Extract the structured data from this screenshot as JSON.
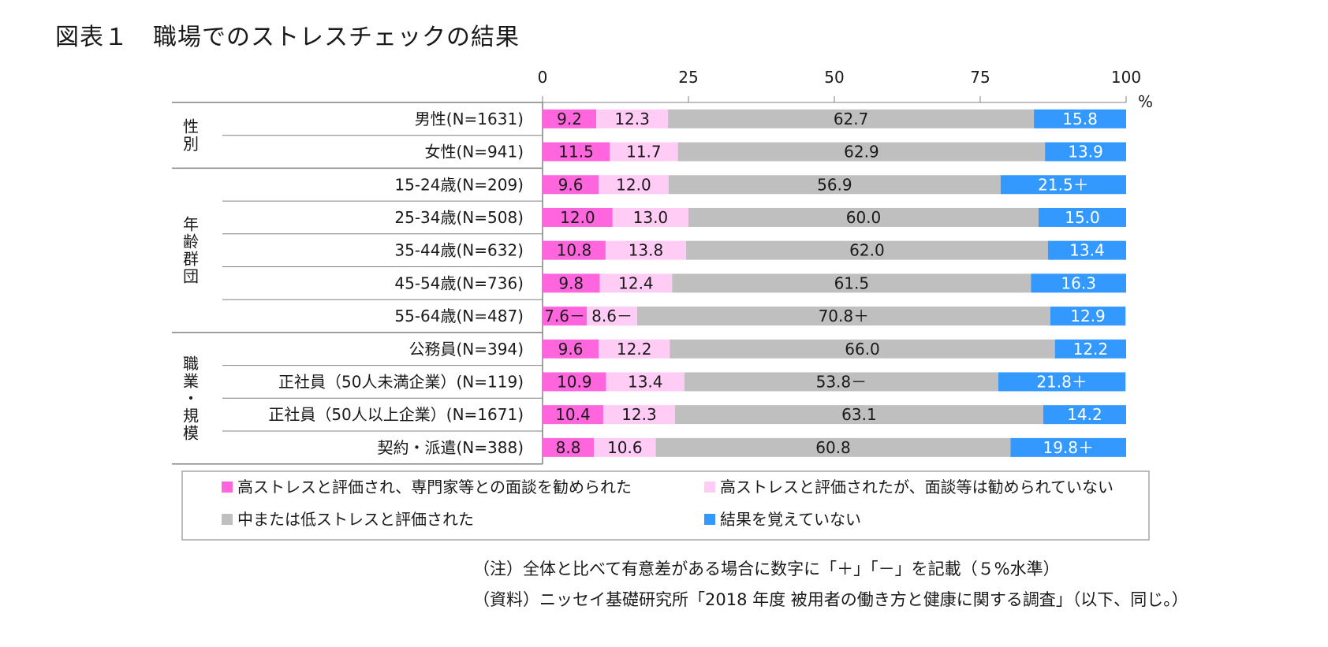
{
  "title": "図表１　職場でのストレスチェックの結果",
  "notes": {
    "note": "（注）全体と比べて有意差がある場合に数字に「＋」「－」を記載（５%水準）",
    "source": "（資料）ニッセイ基礎研究所「2018 年度 被用者の働き方と健康に関する調査」（以下、同じ。）"
  },
  "colors": {
    "series": [
      "#ff66dd",
      "#ffccf5",
      "#bfbfbf",
      "#3399ff"
    ],
    "label_text": [
      "#1a1a1a",
      "#1a1a1a",
      "#1a1a1a",
      "#ffffff"
    ],
    "axis": "#808080"
  },
  "chart_data": {
    "type": "bar",
    "orientation": "horizontal",
    "stacked": true,
    "xlim": [
      0,
      100
    ],
    "x_ticks": [
      0,
      25,
      50,
      75,
      100
    ],
    "x_unit": "%",
    "groups": [
      {
        "name": "性別",
        "rows": [
          0,
          1
        ]
      },
      {
        "name": "年齢群団",
        "rows": [
          2,
          3,
          4,
          5,
          6
        ]
      },
      {
        "name": "職業・規模",
        "rows": [
          7,
          8,
          9,
          10
        ]
      }
    ],
    "categories": [
      "男性(N=1631)",
      "女性(N=941)",
      "15-24歳(N=209)",
      "25-34歳(N=508)",
      "35-44歳(N=632)",
      "45-54歳(N=736)",
      "55-64歳(N=487)",
      "公務員(N=394)",
      "正社員（50人未満企業）(N=119)",
      "正社員（50人以上企業）(N=1671)",
      "契約・派遣(N=388)"
    ],
    "series": [
      {
        "name": "高ストレスと評価され、専門家等との面談を勧められた",
        "values": [
          9.2,
          11.5,
          9.6,
          12.0,
          10.8,
          9.8,
          7.6,
          9.6,
          10.9,
          10.4,
          8.8
        ],
        "labels": [
          "9.2",
          "11.5",
          "9.6",
          "12.0",
          "10.8",
          "9.8",
          "7.6－",
          "9.6",
          "10.9",
          "10.4",
          "8.8"
        ]
      },
      {
        "name": "高ストレスと評価されたが、面談等は勧められていない",
        "values": [
          12.3,
          11.7,
          12.0,
          13.0,
          13.8,
          12.4,
          8.6,
          12.2,
          13.4,
          12.3,
          10.6
        ],
        "labels": [
          "12.3",
          "11.7",
          "12.0",
          "13.0",
          "13.8",
          "12.4",
          "8.6－",
          "12.2",
          "13.4",
          "12.3",
          "10.6"
        ]
      },
      {
        "name": "中または低ストレスと評価された",
        "values": [
          62.7,
          62.9,
          56.9,
          60.0,
          62.0,
          61.5,
          70.8,
          66.0,
          53.8,
          63.1,
          60.8
        ],
        "labels": [
          "62.7",
          "62.9",
          "56.9",
          "60.0",
          "62.0",
          "61.5",
          "70.8＋",
          "66.0",
          "53.8－",
          "63.1",
          "60.8"
        ]
      },
      {
        "name": "結果を覚えていない",
        "values": [
          15.8,
          13.9,
          21.5,
          15.0,
          13.4,
          16.3,
          12.9,
          12.2,
          21.8,
          14.2,
          19.8
        ],
        "labels": [
          "15.8",
          "13.9",
          "21.5＋",
          "15.0",
          "13.4",
          "16.3",
          "12.9",
          "12.2",
          "21.8＋",
          "14.2",
          "19.8＋"
        ]
      }
    ]
  }
}
